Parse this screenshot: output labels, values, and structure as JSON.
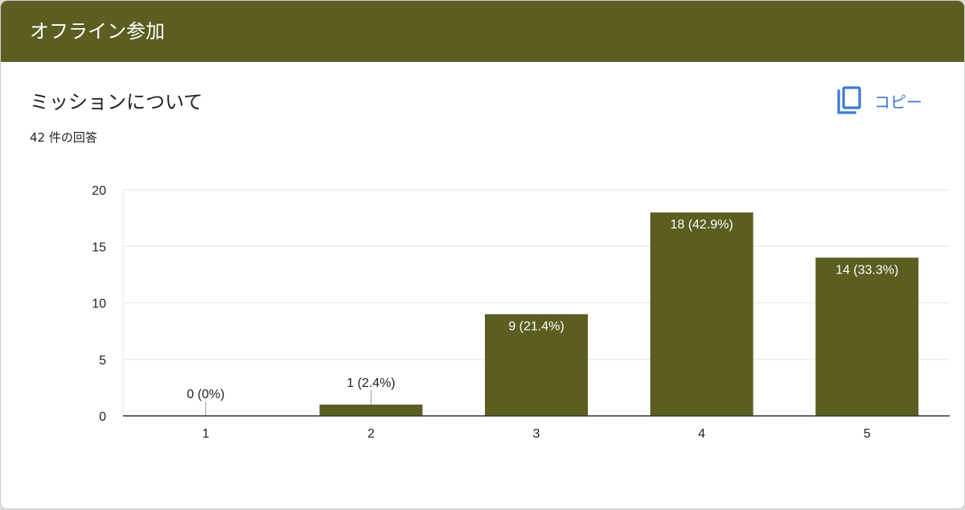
{
  "section": {
    "title": "オフライン参加"
  },
  "question": {
    "title": "ミッションについて",
    "response_count": "42 件の回答"
  },
  "copy_button": {
    "label": "コピー",
    "icon": "copy-icon"
  },
  "colors": {
    "header": "#5b5e20",
    "bar": "#5b5e20",
    "accent": "#3b78d8"
  },
  "chart_data": {
    "type": "bar",
    "categories": [
      "1",
      "2",
      "3",
      "4",
      "5"
    ],
    "values": [
      0,
      1,
      9,
      18,
      14
    ],
    "data_labels": [
      "0 (0%)",
      "1 (2.4%)",
      "9 (21.4%)",
      "18 (42.9%)",
      "14 (33.3%)"
    ],
    "title": "",
    "xlabel": "",
    "ylabel": "",
    "ylim": [
      0,
      20
    ],
    "yticks": [
      0,
      5,
      10,
      15,
      20
    ],
    "grid": true,
    "legend": "none"
  }
}
